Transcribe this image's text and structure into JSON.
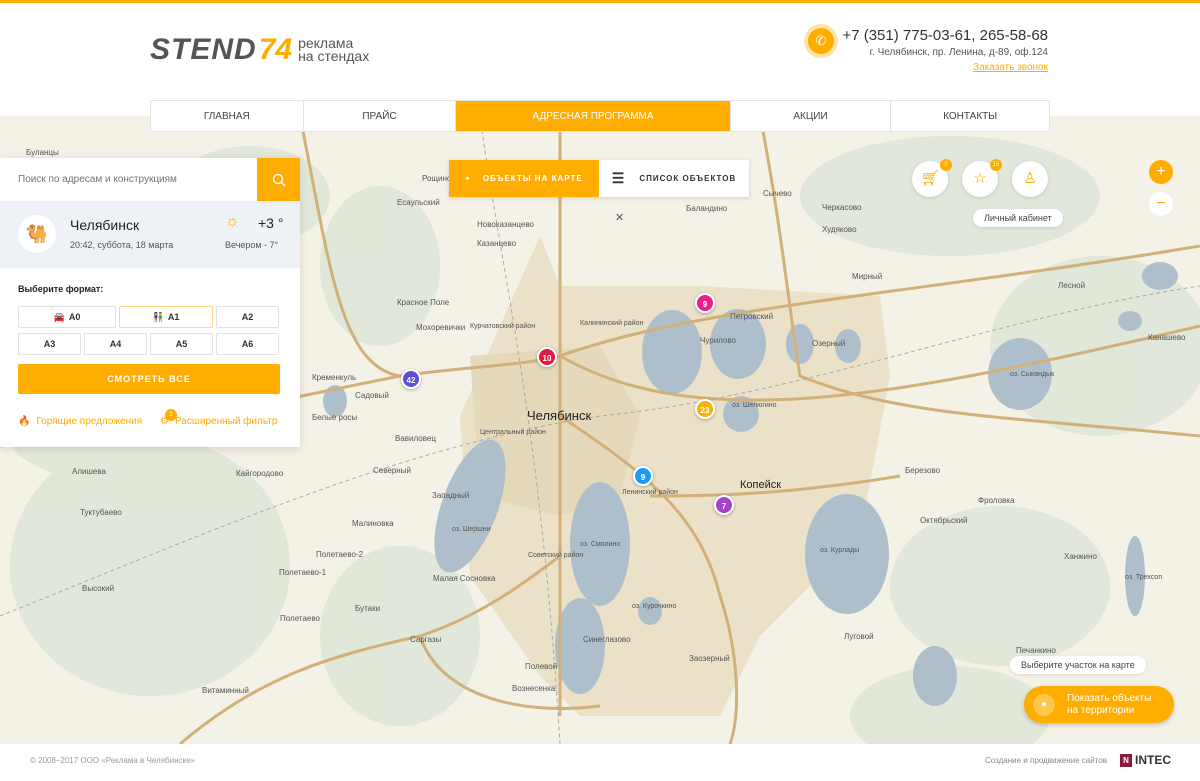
{
  "header": {
    "logo_main": "STEND",
    "logo_num": "74",
    "logo_tagline_1": "реклама",
    "logo_tagline_2": "на стендах",
    "phone": "+7 (351) 775-03-61, 265-58-68",
    "address": "г. Челябинск, пр. Ленина, д-89, оф.124",
    "callback_link": "Заказать звонок"
  },
  "nav": {
    "items": [
      {
        "label": "ГЛАВНАЯ"
      },
      {
        "label": "ПРАЙС"
      },
      {
        "label": "АДРЕСНАЯ ПРОГРАММА",
        "active": true
      },
      {
        "label": "АКЦИИ"
      },
      {
        "label": "КОНТАКТЫ"
      }
    ]
  },
  "panel": {
    "search_placeholder": "Поиск по адресам и конструкциям",
    "city": "Челябинск",
    "datetime": "20:42, суббота, 18 марта",
    "temperature": "+3 °",
    "evening": "Вечером - 7°",
    "format_label": "Выберите формат:",
    "formats": [
      "A0",
      "A1",
      "A2",
      "A3",
      "A4",
      "A5",
      "A6"
    ],
    "selected_format": "A1",
    "see_all": "СМОТРЕТЬ ВСЕ",
    "hot_offers": "Горящие предложения",
    "advanced_filter": "Расширенный фильтр",
    "filter_badge": "3"
  },
  "map_toggle": {
    "on_map": "ОБЪЕКТЫ НА КАРТЕ",
    "list": "СПИСОК ОБЪЕКТОВ"
  },
  "user_controls": {
    "cart_count": "0",
    "favorites_count": "15",
    "cabinet_tooltip": "Личный кабинет"
  },
  "map": {
    "city_label": "Челябинск",
    "kopeisk_label": "Копейск",
    "places": [
      "Буланцы",
      "Рощино",
      "Есаульский",
      "Новоказанцево",
      "Казанцево",
      "Баландино",
      "Сычево",
      "Черкасово",
      "Худяково",
      "Мирный",
      "Лесной",
      "Канашево",
      "Красное Поле",
      "Мохоревички",
      "Курчатовский район",
      "Калининский район",
      "Петровский",
      "Чурилово",
      "Озерный",
      "оз. Сыкандык",
      "Кременкуль",
      "Садовый",
      "Белые росы",
      "Вавиловец",
      "Центральный район",
      "Ленинский район",
      "оз. Шелюгино",
      "Северный",
      "Западный",
      "Березово",
      "Фроловка",
      "Алишева",
      "Кайгородово",
      "Туктубаево",
      "Малиновка",
      "оз. Шершни",
      "Советский район",
      "оз. Смолино",
      "оз. Курлады",
      "Октябрьский",
      "Полетаево-2",
      "Полетаево-1",
      "Малая Сосновка",
      "Высокий",
      "Бутаки",
      "Полетаево",
      "Саргазы",
      "оз. Курочкино",
      "Луговой",
      "Синеглазово",
      "Полевой",
      "Вознесенка",
      "Витаминный",
      "Заозерный",
      "Печанкино",
      "Ханжино",
      "оз. Трехсоп"
    ],
    "markers": [
      {
        "count": "10",
        "color": "#e8173d"
      },
      {
        "count": "9",
        "color": "#e91e8c"
      },
      {
        "count": "42",
        "color": "#5b4fd6"
      },
      {
        "count": "23",
        "color": "#f4b400"
      },
      {
        "count": "9",
        "color": "#1e9bf0"
      },
      {
        "count": "7",
        "color": "#a445c9"
      }
    ],
    "select_area_tooltip": "Выберите участок на карте",
    "show_objects": "Показать объекты на территории"
  },
  "footer": {
    "copyright": "© 2008–2017 ООО «Реклама в Челябинске»",
    "made_by": "Создание и продвижение сайтов",
    "intec": "INTEC"
  },
  "colors": {
    "accent": "#ffad00"
  }
}
